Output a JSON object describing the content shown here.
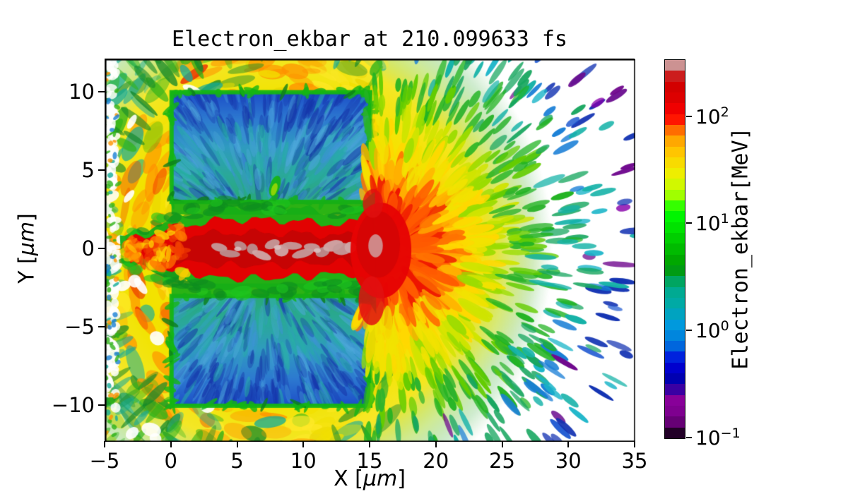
{
  "title": "Electron_ekbar at 210.099633 fs",
  "time_fs": "210.099633",
  "chart_data": {
    "type": "heatmap",
    "title": "Electron_ekbar at 210.099633 fs",
    "xlabel_pre": "X [",
    "xlabel_unit": "μm",
    "xlabel_post": "]",
    "ylabel_pre": "Y [",
    "ylabel_unit": "μm",
    "ylabel_post": "]",
    "xlim": [
      -5,
      35
    ],
    "ylim": [
      -12.3,
      12.1
    ],
    "x_ticks": [
      -5,
      0,
      5,
      10,
      15,
      20,
      25,
      30,
      35
    ],
    "x_tick_labels": [
      "−5",
      "0",
      "5",
      "10",
      "15",
      "20",
      "25",
      "30",
      "35"
    ],
    "y_ticks": [
      10,
      5,
      0,
      -5,
      -10
    ],
    "y_tick_labels": [
      "10",
      "5",
      "0",
      "−5",
      "−10"
    ],
    "grid": false,
    "colorbar": {
      "label": "Electron_ekbar[MeV]",
      "scale": "log",
      "vmin": 0.1,
      "vmax": 340,
      "n_bands": 35,
      "colormap": "nipy_spectral",
      "colormap_stops": [
        [
          0.0,
          "#000000"
        ],
        [
          0.05,
          "#770088"
        ],
        [
          0.1,
          "#880099"
        ],
        [
          0.15,
          "#0000aa"
        ],
        [
          0.2,
          "#0000dd"
        ],
        [
          0.25,
          "#0077dd"
        ],
        [
          0.3,
          "#0099dd"
        ],
        [
          0.35,
          "#00aaaa"
        ],
        [
          0.4,
          "#00aa88"
        ],
        [
          0.45,
          "#009900"
        ],
        [
          0.5,
          "#00bb00"
        ],
        [
          0.55,
          "#00dd00"
        ],
        [
          0.6,
          "#00ff00"
        ],
        [
          0.65,
          "#bbff00"
        ],
        [
          0.7,
          "#eeee00"
        ],
        [
          0.75,
          "#ffcc00"
        ],
        [
          0.8,
          "#ff9900"
        ],
        [
          0.85,
          "#ff0000"
        ],
        [
          0.9,
          "#dd0000"
        ],
        [
          0.95,
          "#cc0000"
        ],
        [
          1.0,
          "#cccccc"
        ]
      ],
      "ticks": [
        {
          "value": 100,
          "mantissa": "10",
          "exponent": "2"
        },
        {
          "value": 10,
          "mantissa": "10",
          "exponent": "1"
        },
        {
          "value": 1,
          "mantissa": "10",
          "exponent": "0"
        },
        {
          "value": 0.1,
          "mantissa": "10",
          "exponent": "−1"
        }
      ]
    },
    "regions": [
      {
        "name": "target_slab_upper",
        "x": [
          0,
          15
        ],
        "y": [
          3,
          10
        ],
        "ekbar_MeV": [
          0.5,
          3
        ]
      },
      {
        "name": "target_slab_lower",
        "x": [
          0,
          15
        ],
        "y": [
          -10,
          -3
        ],
        "ekbar_MeV": [
          0.5,
          3
        ]
      },
      {
        "name": "slab_surface_skin_green_rim",
        "ekbar_MeV": [
          5,
          15
        ]
      },
      {
        "name": "central_heated_channel",
        "x": [
          -3,
          15
        ],
        "y": [
          -2,
          2
        ],
        "ekbar_MeV": [
          100,
          340
        ],
        "note": "grey-pink blobs along axis = hottest 250-340 MeV"
      },
      {
        "name": "rear_hot_spot",
        "center": [
          15.8,
          0
        ],
        "radius": [
          2,
          4
        ],
        "ekbar_MeV": [
          100,
          250
        ]
      },
      {
        "name": "front_plasma_halo",
        "x": [
          -5,
          17
        ],
        "ekbar_MeV": [
          20,
          80
        ]
      },
      {
        "name": "halo_ring_arcs",
        "center": [
          8,
          0
        ],
        "radius": 11.5,
        "ekbar_MeV": [
          80,
          150
        ]
      },
      {
        "name": "rear_jet_fan",
        "source": [
          16.2,
          0
        ],
        "radius_bands_MeV": [
          [
            4,
            150
          ],
          [
            7,
            40
          ],
          [
            12,
            8
          ],
          [
            16,
            1.5
          ],
          [
            21,
            0.3
          ]
        ]
      },
      {
        "name": "vacuum_white",
        "ekbar_MeV_below": 0.1
      }
    ],
    "render": {
      "seed": 7,
      "bg": "#ffffff",
      "halo": {
        "cx": 8,
        "cy": 0,
        "r": 19,
        "stops": [
          [
            0,
            "rgba(255,179,0,1)"
          ],
          [
            0.28,
            "rgba(246,224,0,1)"
          ],
          [
            0.55,
            "rgba(242,227,0,1)"
          ],
          [
            0.72,
            "rgba(242,227,0,0.85)"
          ],
          [
            0.84,
            "rgba(150,210,20,0.45)"
          ],
          [
            0.93,
            "rgba(40,170,40,0.22)"
          ],
          [
            1,
            "rgba(40,170,40,0)"
          ]
        ]
      },
      "yellows": [
        "#f2e000",
        "#ffe92a",
        "#e8d400"
      ],
      "ring_colors": [
        "#ff9100",
        "#f23c00",
        "#e82000"
      ],
      "fringe_greens": [
        "#2fb319",
        "#13882a",
        "#14ab99"
      ],
      "edge_specks": [
        "#14ab99",
        "#2fb319",
        "#ff9100",
        "#1a7fd6"
      ],
      "slab": {
        "x0": 0,
        "x1": 15,
        "y0": 3,
        "y1": 10,
        "grad": [
          "#1d4ec8",
          "#2d7ad0",
          "#2f9bc0",
          "#2aa89a",
          "#28a878"
        ],
        "streaks": [
          "#1533a5",
          "#3e92d8",
          "#27b0a4",
          "#4fa8dc"
        ],
        "navy": "#1432a8",
        "rim": "#14b514",
        "rim_dark": "#0c7e1a"
      },
      "notch": {
        "x": 7.8,
        "y": 4.0
      },
      "fan": {
        "sx": 16.2,
        "sy": 0,
        "wash_r": 11,
        "wash": [
          [
            0,
            "rgba(255,60,0,0.95)"
          ],
          [
            0.25,
            "rgba(255,125,0,0.85)"
          ],
          [
            0.45,
            "rgba(255,190,0,0.72)"
          ],
          [
            0.62,
            "rgba(250,225,0,0.55)"
          ],
          [
            0.78,
            "rgba(250,228,0,0.25)"
          ],
          [
            1,
            "rgba(250,228,0,0)"
          ]
        ],
        "bands": [
          [
            4.0,
            [
              "#ee1500",
              "#ff5a00"
            ]
          ],
          [
            5.5,
            [
              "#ff7300",
              "#ffb000"
            ]
          ],
          [
            7.5,
            [
              "#ffd800",
              "#f2e200"
            ]
          ],
          [
            9.5,
            [
              "#cfe400",
              "#9adc00"
            ]
          ],
          [
            12.0,
            [
              "#63cc00",
              "#22b322",
              "#2db32d"
            ]
          ],
          [
            14.5,
            [
              "#17a65f",
              "#15b2a8",
              "#22b322"
            ]
          ],
          [
            16.5,
            [
              "#18b4c8",
              "#1a7fd6",
              "#17a65f"
            ]
          ],
          [
            18.5,
            [
              "#1a55d0",
              "#1232b2",
              "#15b2a8"
            ]
          ],
          [
            99.0,
            [
              "#1232b2",
              "#6a0d8f",
              "#8800aa",
              "#18b4c8"
            ]
          ]
        ],
        "purple": "#70098e"
      },
      "bulb_blobs": [
        [
          15.8,
          -0.1,
          2.1,
          3.3,
          "#e60303",
          0.96
        ],
        [
          15.6,
          0.3,
          1.5,
          2.3,
          "#d40404",
          0.9
        ],
        [
          15.1,
          -3.3,
          0.9,
          1.7,
          "#e01010",
          0.85
        ],
        [
          15.2,
          2.9,
          0.7,
          1.0,
          "#e01010",
          0.8
        ],
        [
          15.4,
          0.2,
          0.5,
          0.8,
          "#cf9f9f",
          0.85
        ]
      ],
      "channel": {
        "green": "#16ae16",
        "green_dark": "#0e8c20",
        "green_lite": "#1ec51e",
        "red": "#e20202",
        "core": "#c40404",
        "rosy": [
          "#c49a9a",
          "#cfa8a8",
          "#ba8e8e"
        ],
        "rosy_light": "#dcc0c0",
        "tip_oranges": [
          "#ff7a00",
          "#f23c00",
          "#ffd000"
        ],
        "width_pts": [
          [
            -3.4,
            0.55
          ],
          [
            -1,
            1.1
          ],
          [
            1,
            1.5
          ],
          [
            4,
            1.9
          ],
          [
            8,
            1.85
          ],
          [
            11,
            1.7
          ],
          [
            13,
            1.5
          ],
          [
            14,
            1.8
          ],
          [
            15.4,
            2.7
          ]
        ],
        "rosy_pos": [
          [
            3.6,
            0.1
          ],
          [
            4.4,
            -0.3
          ],
          [
            5.2,
            0.2
          ],
          [
            6.1,
            0.0
          ],
          [
            6.8,
            -0.4
          ],
          [
            7.6,
            0.3
          ],
          [
            8.3,
            -0.1
          ],
          [
            9.1,
            0.2
          ],
          [
            9.9,
            -0.3
          ],
          [
            10.6,
            0.1
          ],
          [
            11.4,
            -0.2
          ],
          [
            12.2,
            0.2
          ],
          [
            12.9,
            0.0
          ],
          [
            13.5,
            0.1
          ]
        ]
      }
    }
  }
}
